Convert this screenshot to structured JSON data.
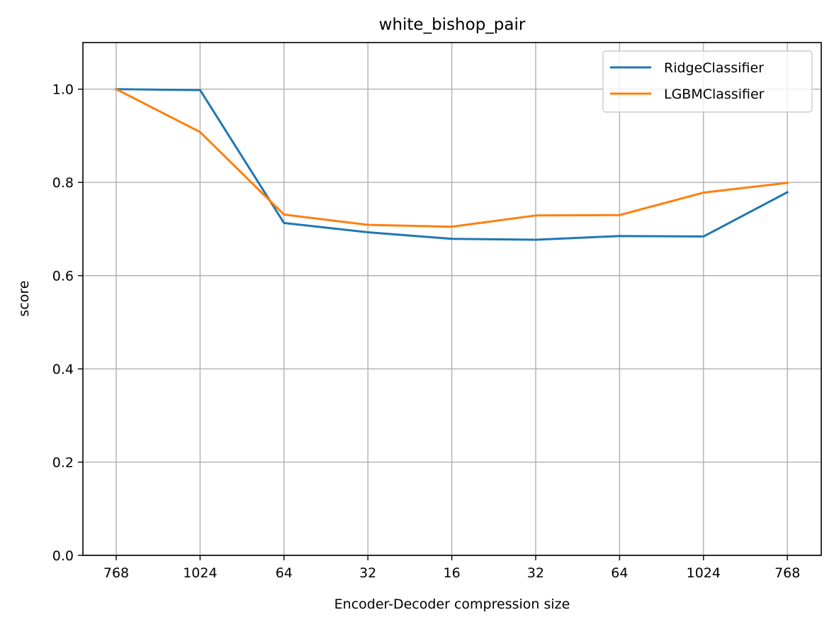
{
  "chart_data": {
    "type": "line",
    "title": "white_bishop_pair",
    "xlabel": "Encoder-Decoder compression size",
    "ylabel": "score",
    "categories": [
      "768",
      "1024",
      "64",
      "32",
      "16",
      "32",
      "64",
      "1024",
      "768"
    ],
    "ylim": [
      0.0,
      1.1
    ],
    "yticks": [
      "0.0",
      "0.2",
      "0.4",
      "0.6",
      "0.8",
      "1.0"
    ],
    "grid": true,
    "legend_position": "top-right",
    "series": [
      {
        "name": "RidgeClassifier",
        "color": "#1f77b4",
        "values": [
          1.0,
          0.998,
          0.713,
          0.693,
          0.679,
          0.677,
          0.685,
          0.684,
          0.779
        ]
      },
      {
        "name": "LGBMClassifier",
        "color": "#ff7f0e",
        "values": [
          1.0,
          0.908,
          0.731,
          0.709,
          0.705,
          0.729,
          0.73,
          0.778,
          0.799
        ]
      }
    ]
  }
}
